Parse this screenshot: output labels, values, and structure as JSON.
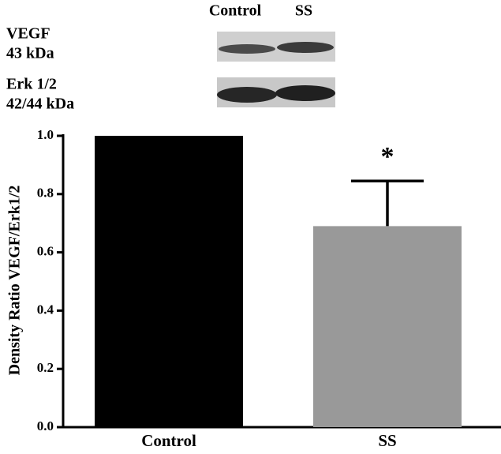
{
  "chart_data": {
    "type": "bar",
    "categories": [
      "Control",
      "SS"
    ],
    "values": [
      1.0,
      0.69
    ],
    "errors": [
      null,
      0.155
    ],
    "colors": [
      "#000000",
      "#999999"
    ],
    "ylabel": "Density Ratio VEGF/Erk1/2",
    "ylim": [
      0,
      1
    ],
    "yticks": [
      {
        "value": 0,
        "label": "0.0"
      },
      0.2,
      0.4,
      0.6,
      0.8,
      {
        "value": 1,
        "label": "1.0"
      }
    ],
    "annotation": "*",
    "blot": {
      "lanes": [
        "Control",
        "SS"
      ],
      "rows": [
        {
          "name": "VEGF",
          "size": "43 kDa"
        },
        {
          "name": "Erk 1/2",
          "size": "42/44 kDa"
        }
      ]
    }
  }
}
